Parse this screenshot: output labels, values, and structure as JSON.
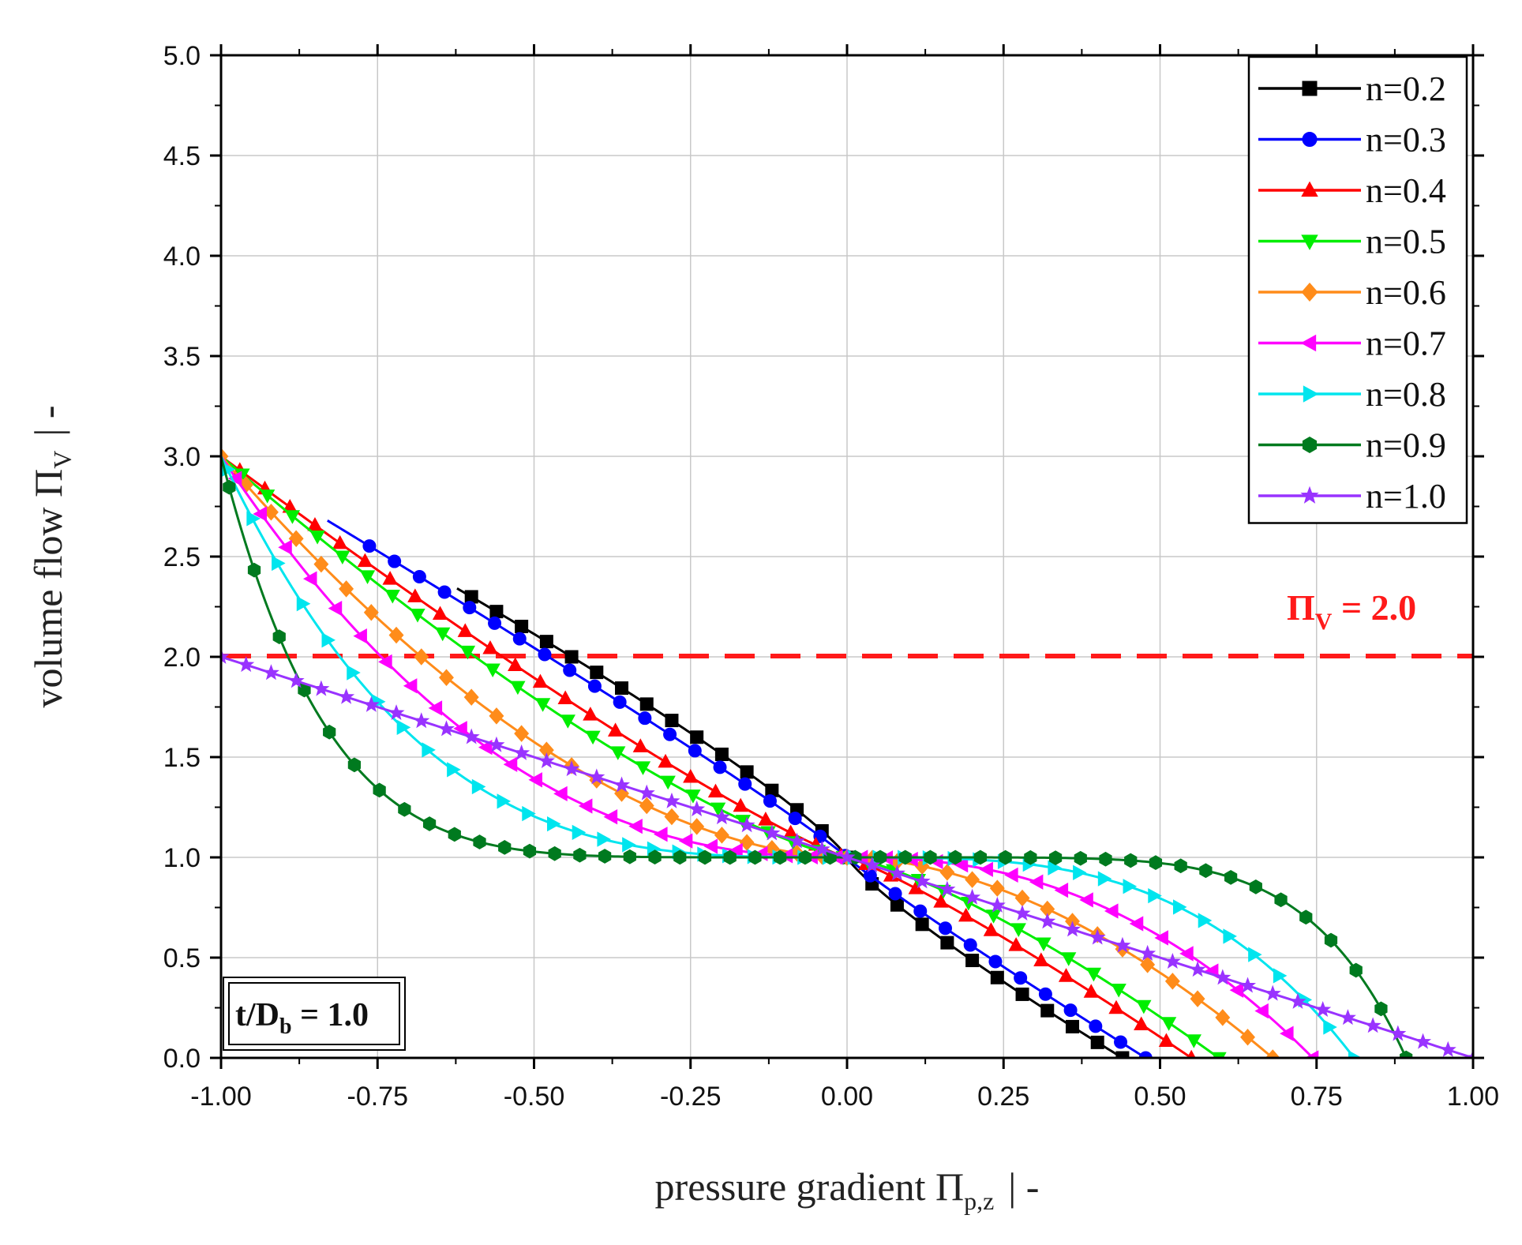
{
  "chart_data": {
    "type": "line",
    "xlabel": {
      "main": "pressure gradient Π",
      "sub": "p,z",
      "unit": "|  -"
    },
    "ylabel": {
      "main": "volume flow Π",
      "sub": "V",
      "unit": "|  -"
    },
    "xlim": [
      -1.0,
      1.0
    ],
    "ylim": [
      0.0,
      5.0
    ],
    "x_ticks": [
      "-1.00",
      "-0.75",
      "-0.50",
      "-0.25",
      "0.00",
      "0.25",
      "0.50",
      "0.75",
      "1.00"
    ],
    "y_ticks": [
      "0.0",
      "0.5",
      "1.0",
      "1.5",
      "2.0",
      "2.5",
      "3.0",
      "3.5",
      "4.0",
      "4.5",
      "5.0"
    ],
    "grid": true,
    "legend_position": "top-right",
    "series": [
      {
        "name": "n=0.2",
        "color": "#000000",
        "marker": "square",
        "x0": 0.44,
        "x_left": -0.623
      },
      {
        "name": "n=0.3",
        "color": "#0000ff",
        "marker": "circle",
        "x0": 0.477,
        "x_left": -0.83
      },
      {
        "name": "n=0.4",
        "color": "#ff0000",
        "marker": "triangle-up",
        "x0": 0.55,
        "x_left": -1.0
      },
      {
        "name": "n=0.5",
        "color": "#00ee00",
        "marker": "triangle-down",
        "x0": 0.594,
        "x_left": -1.0
      },
      {
        "name": "n=0.6",
        "color": "#ff8c1a",
        "marker": "diamond",
        "x0": 0.68,
        "x_left": -1.0
      },
      {
        "name": "n=0.7",
        "color": "#ff00ff",
        "marker": "triangle-left",
        "x0": 0.744,
        "x_left": -1.0
      },
      {
        "name": "n=0.8",
        "color": "#00e5ee",
        "marker": "triangle-right",
        "x0": 0.81,
        "x_left": -1.0
      },
      {
        "name": "n=0.9",
        "color": "#007a1f",
        "marker": "hexagon",
        "x0": 0.893,
        "x_left": -1.0
      },
      {
        "name": "n=1.0",
        "color": "#9933ff",
        "marker": "star",
        "x0": 1.0,
        "x_left": -1.0
      }
    ],
    "reference_line": {
      "y": 2.0,
      "color": "#ff1a1a",
      "style": "dashed"
    },
    "annotations": {
      "pi_v_label": {
        "main": "Π",
        "sub": "V",
        "rest": " = 2.0"
      },
      "t_db_label": {
        "main": "t/D",
        "sub": "b",
        "rest": " = 1.0"
      }
    }
  }
}
